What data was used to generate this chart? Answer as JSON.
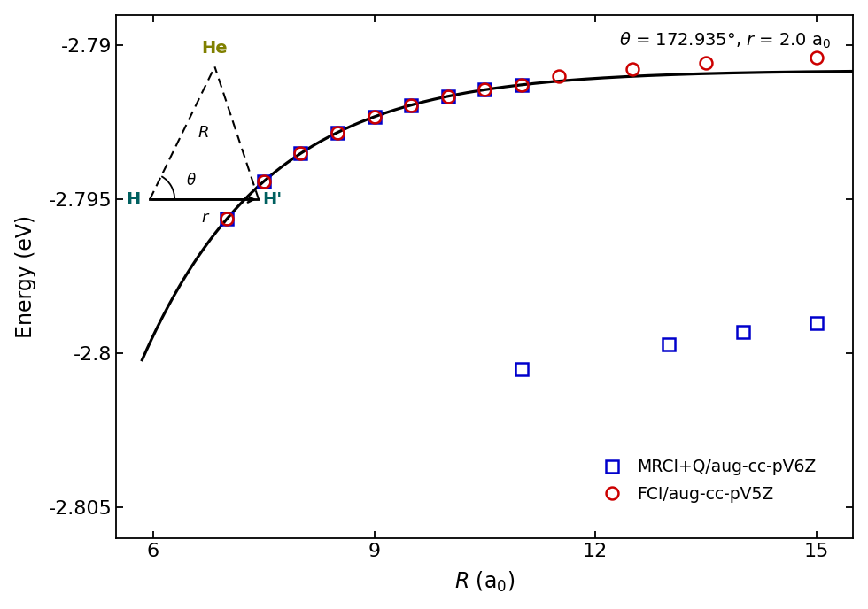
{
  "xlabel": "$R$ (a$_0$)",
  "ylabel": "Energy (eV)",
  "xlim": [
    5.5,
    15.5
  ],
  "ylim": [
    -2.806,
    -2.789
  ],
  "ytick_vals": [
    -2.805,
    -2.8,
    -2.795,
    -2.79
  ],
  "ytick_labels": [
    "-2.805",
    "-2.8",
    "-2.795",
    "-2.79"
  ],
  "xtick_vals": [
    6,
    9,
    12,
    15
  ],
  "xtick_labels": [
    "6",
    "9",
    "12",
    "15"
  ],
  "curve_color": "#000000",
  "mrci_color": "#0000cc",
  "fci_color": "#cc0000",
  "bg_color": "#ffffff",
  "label_mrci": "MRCI+Q/aug-cc-pV6Z",
  "label_fci": "FCI/aug-cc-pV5Z",
  "He_color": "#808000",
  "H_color": "#006060",
  "annotation": "θ = 172.935°, r = 2.0 a₀",
  "mrci_on_R": [
    7.0,
    7.5,
    8.0,
    8.5,
    9.0,
    9.5,
    10.0,
    10.5,
    11.0
  ],
  "mrci_off_R": [
    11.0,
    13.0,
    14.0,
    15.0
  ],
  "mrci_off_E": [
    -2.8005,
    -2.7997,
    -2.7993,
    -2.799
  ],
  "fci_R": [
    7.0,
    7.5,
    8.0,
    8.5,
    9.0,
    9.5,
    10.0,
    10.5,
    11.0,
    11.5,
    12.5,
    13.5,
    15.0
  ],
  "curve_asymptote": -2.7908,
  "curve_B": -0.28,
  "curve_alpha": 0.58
}
